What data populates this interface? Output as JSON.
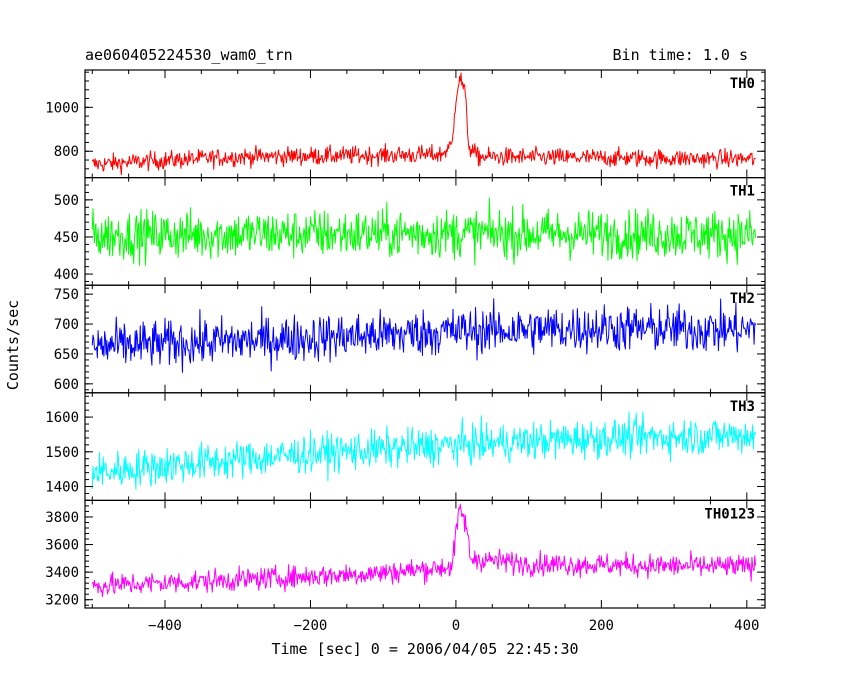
{
  "chart_data": {
    "type": "line",
    "title": "ae060405224530_wam0_trn",
    "bin_time_label": "Bin time: 1.0 s",
    "xlabel": "Time [sec] 0 = 2006/04/05 22:45:30",
    "ylabel": "Counts/sec",
    "xlim": [
      -510,
      425
    ],
    "x_ticks": [
      -400,
      -200,
      0,
      200,
      400
    ],
    "x_tick_labels": [
      "−400",
      "−200",
      "0",
      "200",
      "400"
    ],
    "x_range": [
      -500,
      412
    ],
    "panels": [
      {
        "name": "TH0",
        "color": "#ff0000",
        "ylim": [
          680,
          1170
        ],
        "yticks": [
          800,
          1000
        ],
        "ytick_labels": [
          "800",
          "1000"
        ],
        "trend": [
          [
            -500,
            740
          ],
          [
            -420,
            755
          ],
          [
            -300,
            775
          ],
          [
            -150,
            780
          ],
          [
            -20,
            785
          ],
          [
            -5,
            830
          ],
          [
            0,
            1050
          ],
          [
            5,
            1140
          ],
          [
            12,
            1080
          ],
          [
            18,
            820
          ],
          [
            30,
            775
          ],
          [
            200,
            770
          ],
          [
            412,
            765
          ]
        ],
        "noise": 38
      },
      {
        "name": "TH1",
        "color": "#00ff00",
        "ylim": [
          385,
          530
        ],
        "yticks": [
          400,
          450,
          500
        ],
        "ytick_labels": [
          "400",
          "450",
          "500"
        ],
        "trend": [
          [
            -500,
            452
          ],
          [
            -250,
            454
          ],
          [
            0,
            455
          ],
          [
            200,
            454
          ],
          [
            412,
            453
          ]
        ],
        "noise": 30
      },
      {
        "name": "TH2",
        "color": "#0000ff",
        "ylim": [
          585,
          765
        ],
        "yticks": [
          600,
          650,
          700,
          750
        ],
        "ytick_labels": [
          "600",
          "650",
          "700",
          "750"
        ],
        "trend": [
          [
            -500,
            662
          ],
          [
            -300,
            672
          ],
          [
            -100,
            682
          ],
          [
            0,
            688
          ],
          [
            200,
            693
          ],
          [
            412,
            690
          ]
        ],
        "noise": 36
      },
      {
        "name": "TH3",
        "color": "#00ffff",
        "ylim": [
          1360,
          1670
        ],
        "yticks": [
          1400,
          1500,
          1600
        ],
        "ytick_labels": [
          "1400",
          "1500",
          "1600"
        ],
        "trend": [
          [
            -500,
            1440
          ],
          [
            -400,
            1460
          ],
          [
            -200,
            1495
          ],
          [
            0,
            1520
          ],
          [
            200,
            1540
          ],
          [
            412,
            1548
          ]
        ],
        "noise": 50
      },
      {
        "name": "TH0123",
        "color": "#ff00ff",
        "ylim": [
          3140,
          3920
        ],
        "yticks": [
          3200,
          3400,
          3600,
          3800
        ],
        "ytick_labels": [
          "3200",
          "3400",
          "3600",
          "3800"
        ],
        "trend": [
          [
            -500,
            3300
          ],
          [
            -300,
            3345
          ],
          [
            -100,
            3395
          ],
          [
            -5,
            3440
          ],
          [
            0,
            3680
          ],
          [
            6,
            3860
          ],
          [
            14,
            3740
          ],
          [
            20,
            3500
          ],
          [
            100,
            3460
          ],
          [
            300,
            3445
          ],
          [
            412,
            3440
          ]
        ],
        "noise": 75
      }
    ]
  }
}
